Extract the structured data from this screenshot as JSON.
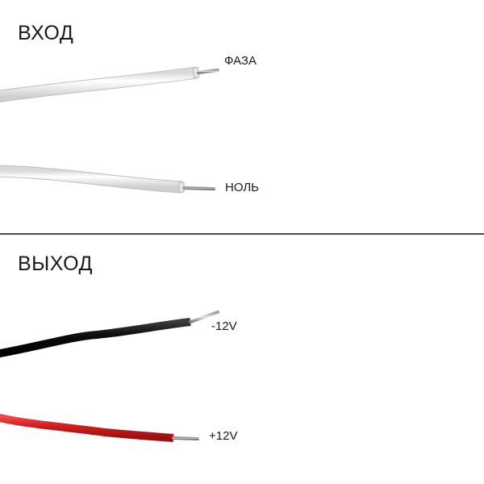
{
  "input": {
    "heading": "ВХОД",
    "wires": [
      {
        "label": "ФАЗА",
        "insulation_color": "#f1f1f1"
      },
      {
        "label": "НОЛЬ",
        "insulation_color": "#f1f1f1"
      }
    ]
  },
  "output": {
    "heading": "ВЫХОД",
    "wires": [
      {
        "label": "-12V",
        "insulation_color": "#111111"
      },
      {
        "label": "+12V",
        "insulation_color": "#d21f1f"
      }
    ]
  }
}
